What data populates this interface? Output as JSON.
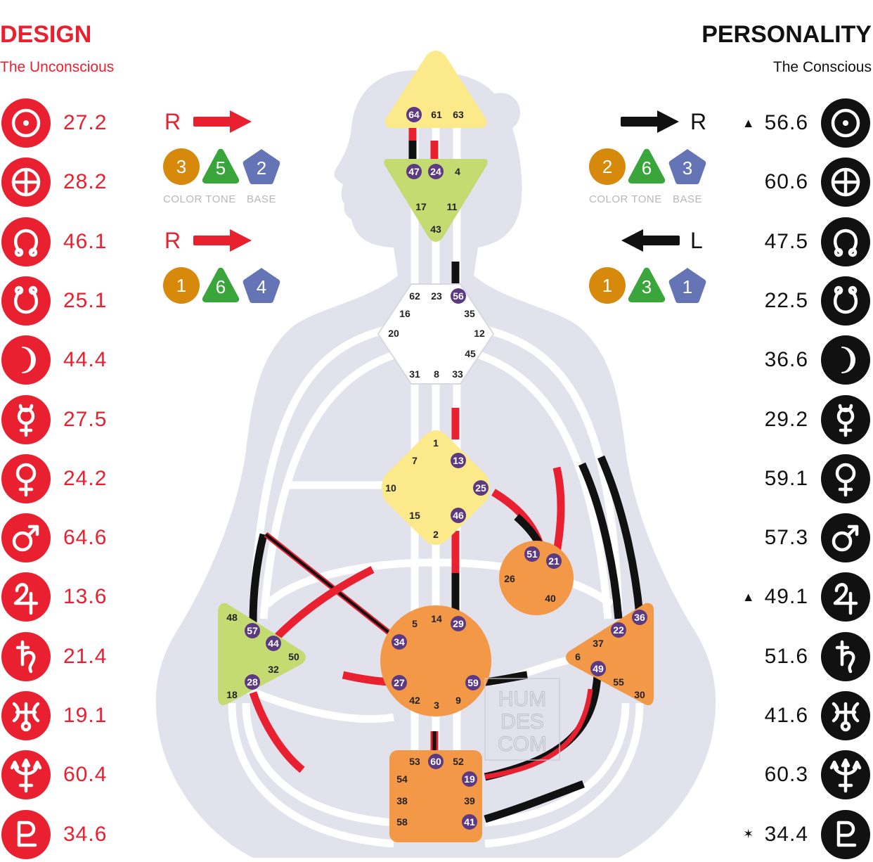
{
  "design": {
    "title": "DESIGN",
    "subtitle": "The Unconscious",
    "color": "#e8202f",
    "planets": [
      {
        "icon": "sun-icon",
        "value": "27.2",
        "mark": ""
      },
      {
        "icon": "earth-icon",
        "value": "28.2",
        "mark": ""
      },
      {
        "icon": "north-node-icon",
        "value": "46.1",
        "mark": ""
      },
      {
        "icon": "south-node-icon",
        "value": "25.1",
        "mark": ""
      },
      {
        "icon": "moon-icon",
        "value": "44.4",
        "mark": ""
      },
      {
        "icon": "mercury-icon",
        "value": "27.5",
        "mark": ""
      },
      {
        "icon": "venus-icon",
        "value": "24.2",
        "mark": ""
      },
      {
        "icon": "mars-icon",
        "value": "64.6",
        "mark": ""
      },
      {
        "icon": "jupiter-icon",
        "value": "13.6",
        "mark": ""
      },
      {
        "icon": "saturn-icon",
        "value": "21.4",
        "mark": ""
      },
      {
        "icon": "uranus-icon",
        "value": "19.1",
        "mark": ""
      },
      {
        "icon": "neptune-icon",
        "value": "60.4",
        "mark": ""
      },
      {
        "icon": "pluto-icon",
        "value": "34.6",
        "mark": ""
      }
    ],
    "arrows": [
      {
        "letter": "R",
        "direction": "right",
        "color": "3",
        "tone": "5",
        "base": "2"
      },
      {
        "letter": "R",
        "direction": "right",
        "color": "1",
        "tone": "6",
        "base": "4"
      }
    ]
  },
  "personality": {
    "title": "PERSONALITY",
    "subtitle": "The Conscious",
    "color": "#111111",
    "planets": [
      {
        "icon": "sun-icon",
        "value": "56.6",
        "mark": "▲"
      },
      {
        "icon": "earth-icon",
        "value": "60.6",
        "mark": ""
      },
      {
        "icon": "north-node-icon",
        "value": "47.5",
        "mark": ""
      },
      {
        "icon": "south-node-icon",
        "value": "22.5",
        "mark": ""
      },
      {
        "icon": "moon-icon",
        "value": "36.6",
        "mark": ""
      },
      {
        "icon": "mercury-icon",
        "value": "29.2",
        "mark": ""
      },
      {
        "icon": "venus-icon",
        "value": "59.1",
        "mark": ""
      },
      {
        "icon": "mars-icon",
        "value": "57.3",
        "mark": ""
      },
      {
        "icon": "jupiter-icon",
        "value": "49.1",
        "mark": "▲"
      },
      {
        "icon": "saturn-icon",
        "value": "51.6",
        "mark": ""
      },
      {
        "icon": "uranus-icon",
        "value": "41.6",
        "mark": ""
      },
      {
        "icon": "neptune-icon",
        "value": "60.3",
        "mark": ""
      },
      {
        "icon": "pluto-icon",
        "value": "34.4",
        "mark": "✶"
      }
    ],
    "arrows": [
      {
        "letter": "R",
        "direction": "right",
        "color": "2",
        "tone": "6",
        "base": "3"
      },
      {
        "letter": "L",
        "direction": "left",
        "color": "1",
        "tone": "3",
        "base": "1"
      }
    ]
  },
  "ctb_labels": {
    "color": "COLOR",
    "tone": "TONE",
    "base": "BASE"
  },
  "ctb_colors": {
    "color": "#d6890b",
    "tone": "#3aa53a",
    "base": "#6474b4"
  },
  "bodygraph": {
    "colors": {
      "defined_yellow": "#fbe98a",
      "defined_green": "#c4db72",
      "defined_orange": "#f29847",
      "undefined": "#ffffff",
      "silhouette": "#e1e2ec",
      "active_gate": "#5b3a82",
      "design_line": "#e8202f",
      "personality_line": "#111111"
    },
    "centers": [
      {
        "name": "head",
        "gates": [
          "64",
          "61",
          "63"
        ],
        "active": [
          "64"
        ]
      },
      {
        "name": "ajna",
        "gates": [
          "47",
          "24",
          "4",
          "17",
          "11",
          "43"
        ],
        "active": [
          "47",
          "24"
        ]
      },
      {
        "name": "throat",
        "gates": [
          "62",
          "23",
          "56",
          "16",
          "35",
          "20",
          "12",
          "45",
          "31",
          "8",
          "33"
        ],
        "active": [
          "56"
        ]
      },
      {
        "name": "g-center",
        "gates": [
          "1",
          "7",
          "13",
          "10",
          "25",
          "15",
          "46",
          "2"
        ],
        "active": [
          "13",
          "25",
          "46"
        ]
      },
      {
        "name": "heart",
        "gates": [
          "51",
          "21",
          "26",
          "40"
        ],
        "active": [
          "51",
          "21"
        ]
      },
      {
        "name": "spleen",
        "gates": [
          "48",
          "57",
          "44",
          "50",
          "32",
          "28",
          "18"
        ],
        "active": [
          "57",
          "44",
          "28"
        ]
      },
      {
        "name": "sacral",
        "gates": [
          "5",
          "14",
          "29",
          "34",
          "27",
          "59",
          "42",
          "3",
          "9"
        ],
        "active": [
          "29",
          "34",
          "27",
          "59"
        ]
      },
      {
        "name": "solar-plexus",
        "gates": [
          "36",
          "22",
          "37",
          "6",
          "49",
          "55",
          "30"
        ],
        "active": [
          "36",
          "22",
          "49"
        ]
      },
      {
        "name": "root",
        "gates": [
          "53",
          "60",
          "52",
          "54",
          "19",
          "38",
          "39",
          "58",
          "41"
        ],
        "active": [
          "60",
          "19",
          "41"
        ]
      }
    ],
    "watermark": [
      "HUM",
      "DES",
      "COM"
    ]
  }
}
